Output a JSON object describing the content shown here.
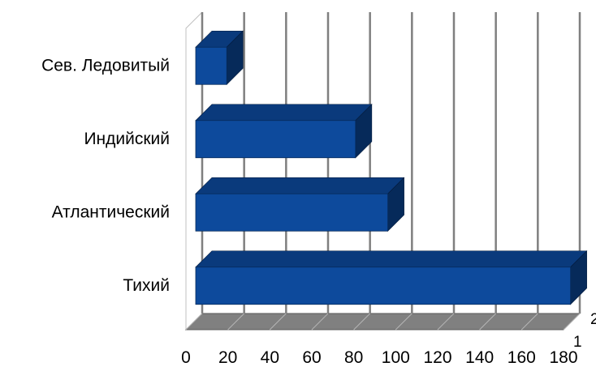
{
  "chart_data": {
    "type": "bar",
    "orientation": "horizontal",
    "three_d": true,
    "title": "",
    "xlabel": "",
    "ylabel": "",
    "categories": [
      "Сев. Ледовитый",
      "Индийский",
      "Атлантический",
      "Тихий"
    ],
    "values": [
      14.8,
      76.2,
      91.6,
      178.7
    ],
    "xlim": [
      0,
      180
    ],
    "x_ticks": [
      "0",
      "20",
      "40",
      "60",
      "80",
      "100",
      "120",
      "140",
      "160",
      "180"
    ],
    "grid": true,
    "legend": "none",
    "depth_axis_labels": [
      "1",
      "2"
    ],
    "colors": {
      "bar_front": "#0d4a9c",
      "bar_top": "#0a3a7c",
      "bar_side": "#062a5a",
      "floor": "#808080",
      "gridline": "#7f7f7f"
    }
  }
}
